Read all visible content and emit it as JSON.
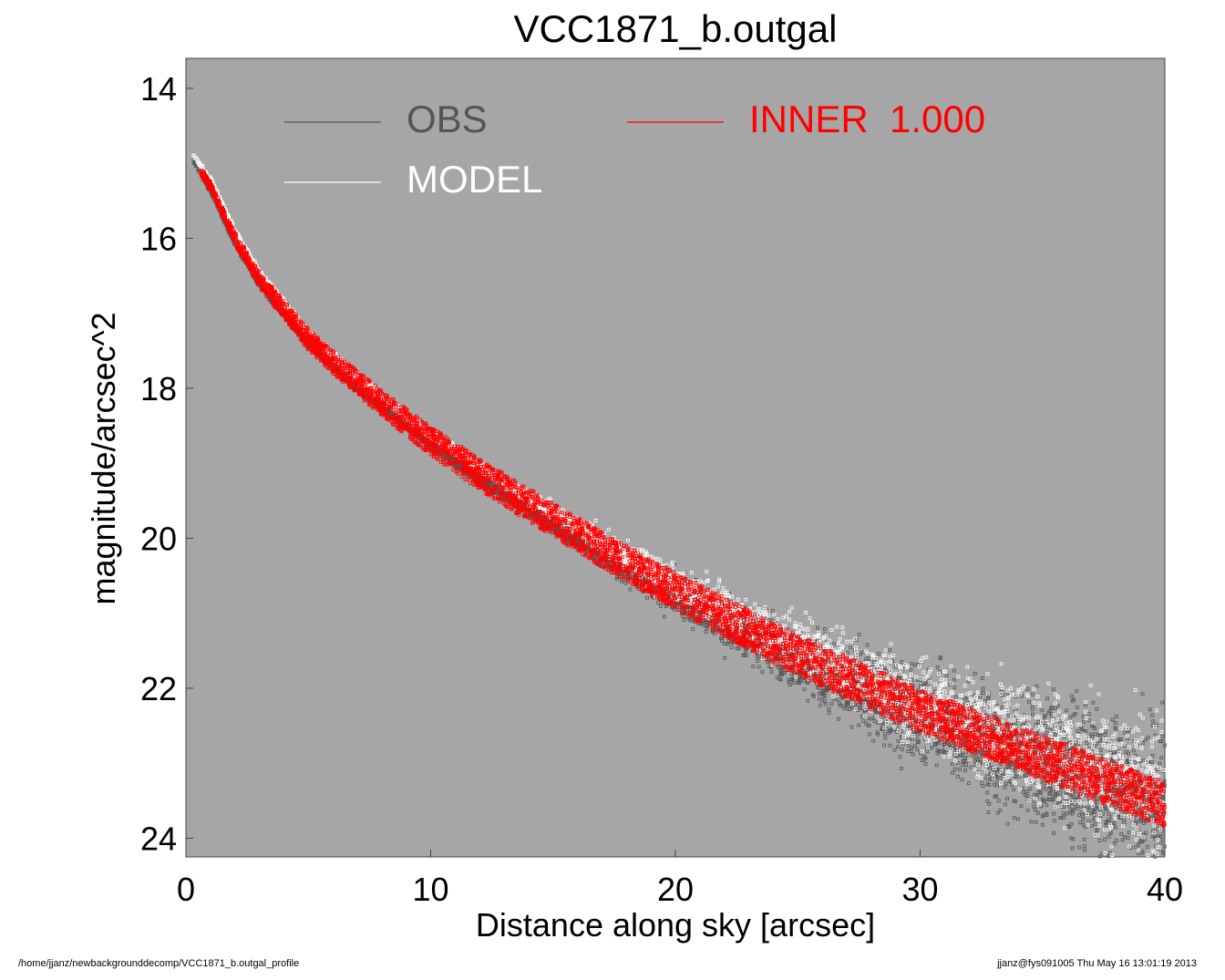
{
  "chart_data": {
    "type": "scatter",
    "title": "VCC1871_b.outgal",
    "xlabel": "Distance along sky [arcsec]",
    "ylabel": "magnitude/arcsec^2",
    "xlim": [
      0,
      40
    ],
    "ylim": [
      24.25,
      13.6
    ],
    "y_inverted": true,
    "xticks": [
      0,
      10,
      20,
      30,
      40
    ],
    "yticks": [
      14,
      16,
      18,
      20,
      22,
      24
    ],
    "grid": false,
    "background": "#a6a6a6",
    "legend": [
      {
        "label": "OBS",
        "color": "#555555"
      },
      {
        "label": "MODEL",
        "color": "#ffffff"
      },
      {
        "label": "INNER  1.000",
        "color": "#ff0000"
      }
    ],
    "legend_placement": "top",
    "series": [
      {
        "name": "OBS",
        "color": "#555555",
        "marker": "open-square",
        "x": [
          0.3,
          0.5,
          1,
          2,
          3,
          4,
          5,
          6,
          7,
          8,
          9,
          10,
          12,
          14,
          16,
          18,
          20,
          22,
          24,
          26,
          28,
          30,
          32,
          34,
          36,
          38,
          40
        ],
        "y": [
          14.9,
          15.0,
          15.3,
          16.0,
          16.55,
          16.95,
          17.35,
          17.65,
          17.95,
          18.2,
          18.45,
          18.7,
          19.15,
          19.55,
          19.95,
          20.35,
          20.7,
          21.05,
          21.4,
          21.7,
          22.0,
          22.3,
          22.55,
          22.8,
          23.05,
          23.3,
          23.55
        ],
        "scatter_band_at_x40": [
          21.4,
          24.25
        ]
      },
      {
        "name": "MODEL",
        "color": "#ffffff",
        "marker": "open-square",
        "x": [
          0.3,
          1,
          2,
          3,
          4,
          5,
          6,
          8,
          10,
          12,
          14,
          16,
          18,
          20,
          22,
          24,
          26,
          28,
          30,
          32,
          34,
          36,
          38,
          40
        ],
        "y": [
          14.95,
          15.25,
          15.95,
          16.5,
          16.9,
          17.3,
          17.6,
          18.15,
          18.65,
          19.1,
          19.5,
          19.9,
          20.3,
          20.65,
          21.0,
          21.35,
          21.65,
          21.95,
          22.25,
          22.5,
          22.75,
          23.0,
          23.25,
          23.5
        ]
      },
      {
        "name": "INNER  1.000",
        "color": "#ff0000",
        "marker": "open-square",
        "x": [
          0.6,
          1,
          2,
          3,
          4,
          5,
          6,
          8,
          10,
          12,
          14,
          16,
          18,
          20,
          22,
          24,
          26,
          28,
          30,
          32,
          34,
          36,
          38,
          40
        ],
        "y": [
          15.1,
          15.3,
          16.0,
          16.55,
          16.95,
          17.35,
          17.65,
          18.2,
          18.7,
          19.15,
          19.55,
          19.95,
          20.35,
          20.7,
          21.05,
          21.4,
          21.7,
          22.0,
          22.3,
          22.55,
          22.8,
          23.05,
          23.3,
          23.55
        ],
        "band_halfwidth": [
          0.05,
          0.06,
          0.08,
          0.1,
          0.12,
          0.14,
          0.15,
          0.17,
          0.19,
          0.21,
          0.22,
          0.23,
          0.24,
          0.25,
          0.26,
          0.27,
          0.27,
          0.28,
          0.28,
          0.29,
          0.29,
          0.3,
          0.3,
          0.3
        ]
      }
    ]
  },
  "footer": {
    "left": "/home/jjanz/newbackgrounddecomp/VCC1871_b.outgal_profile",
    "right": "jjanz@fys091005  Thu May 16 13:01:19 2013"
  }
}
